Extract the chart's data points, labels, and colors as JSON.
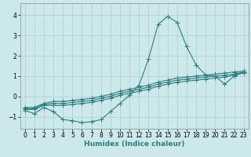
{
  "title": "",
  "xlabel": "Humidex (Indice chaleur)",
  "bg_color": "#cce8ea",
  "line_color": "#2e7d7d",
  "grid_color": "#aacfcf",
  "xlim": [
    -0.5,
    23.5
  ],
  "ylim": [
    -1.6,
    4.6
  ],
  "xticks": [
    0,
    1,
    2,
    3,
    4,
    5,
    6,
    7,
    8,
    9,
    10,
    11,
    12,
    13,
    14,
    15,
    16,
    17,
    18,
    19,
    20,
    21,
    22,
    23
  ],
  "yticks": [
    -1,
    0,
    1,
    2,
    3,
    4
  ],
  "line1_x": [
    0,
    1,
    2,
    3,
    4,
    5,
    6,
    7,
    8,
    9,
    10,
    11,
    12,
    13,
    14,
    15,
    16,
    17,
    18,
    19,
    20,
    21,
    22,
    23
  ],
  "line1_y": [
    -0.7,
    -0.85,
    -0.55,
    -0.75,
    -1.15,
    -1.2,
    -1.3,
    -1.25,
    -1.15,
    -0.75,
    -0.35,
    0.05,
    0.55,
    1.85,
    3.55,
    3.95,
    3.65,
    2.45,
    1.55,
    1.05,
    1.0,
    0.6,
    1.0,
    1.2
  ],
  "line2_x": [
    0,
    1,
    2,
    3,
    4,
    5,
    6,
    7,
    8,
    9,
    10,
    11,
    12,
    13,
    14,
    15,
    16,
    17,
    18,
    19,
    20,
    21,
    22,
    23
  ],
  "line2_y": [
    -0.65,
    -0.65,
    -0.45,
    -0.45,
    -0.45,
    -0.4,
    -0.35,
    -0.3,
    -0.2,
    -0.1,
    0.05,
    0.15,
    0.25,
    0.35,
    0.5,
    0.6,
    0.7,
    0.75,
    0.8,
    0.85,
    0.9,
    0.95,
    1.05,
    1.15
  ],
  "line3_x": [
    0,
    1,
    2,
    3,
    4,
    5,
    6,
    7,
    8,
    9,
    10,
    11,
    12,
    13,
    14,
    15,
    16,
    17,
    18,
    19,
    20,
    21,
    22,
    23
  ],
  "line3_y": [
    -0.6,
    -0.6,
    -0.4,
    -0.35,
    -0.35,
    -0.3,
    -0.25,
    -0.2,
    -0.1,
    0.0,
    0.15,
    0.25,
    0.35,
    0.45,
    0.6,
    0.7,
    0.8,
    0.85,
    0.9,
    0.95,
    1.0,
    1.05,
    1.1,
    1.2
  ],
  "line4_x": [
    0,
    1,
    2,
    3,
    4,
    5,
    6,
    7,
    8,
    9,
    10,
    11,
    12,
    13,
    14,
    15,
    16,
    17,
    18,
    19,
    20,
    21,
    22,
    23
  ],
  "line4_y": [
    -0.55,
    -0.55,
    -0.35,
    -0.25,
    -0.25,
    -0.2,
    -0.15,
    -0.1,
    0.0,
    0.1,
    0.25,
    0.35,
    0.45,
    0.55,
    0.7,
    0.8,
    0.9,
    0.95,
    1.0,
    1.05,
    1.1,
    1.15,
    1.2,
    1.25
  ]
}
